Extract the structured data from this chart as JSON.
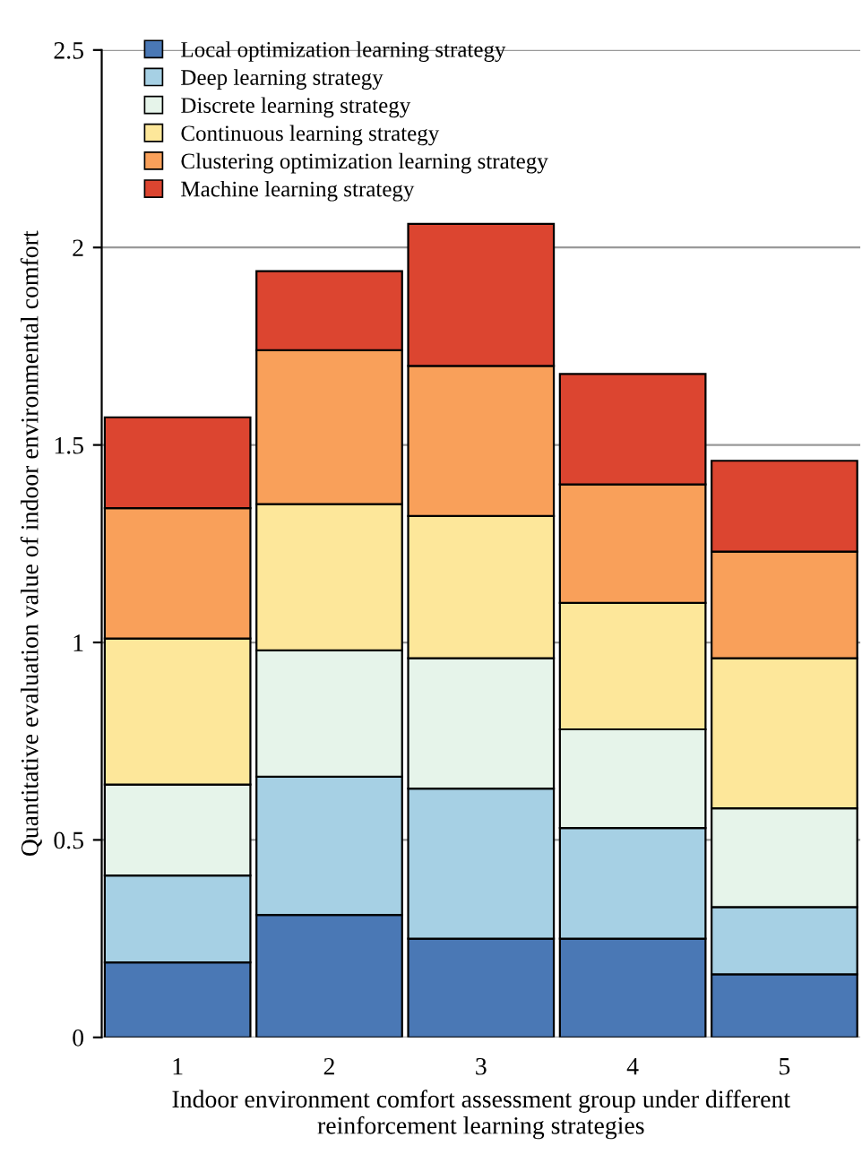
{
  "chart_data": {
    "type": "bar",
    "stacked": true,
    "xlabel": "Indoor environment comfort assessment group under different reinforcement learning strategies",
    "ylabel": "Quantitative evaluation value of indoor environmental comfort",
    "categories": [
      "1",
      "2",
      "3",
      "4",
      "5"
    ],
    "series": [
      {
        "name": "Local optimization learning strategy",
        "color": "#4a78b5",
        "values": [
          0.19,
          0.31,
          0.25,
          0.25,
          0.16
        ]
      },
      {
        "name": "Deep learning strategy",
        "color": "#a6d0e4",
        "values": [
          0.22,
          0.35,
          0.38,
          0.28,
          0.17
        ]
      },
      {
        "name": "Discrete learning strategy",
        "color": "#e6f4ea",
        "values": [
          0.23,
          0.32,
          0.33,
          0.25,
          0.25
        ]
      },
      {
        "name": "Continuous learning strategy",
        "color": "#fde79a",
        "values": [
          0.37,
          0.37,
          0.36,
          0.32,
          0.38
        ]
      },
      {
        "name": "Clustering optimization learning strategy",
        "color": "#f9a05a",
        "values": [
          0.33,
          0.39,
          0.38,
          0.3,
          0.27
        ]
      },
      {
        "name": "Machine learning strategy",
        "color": "#dc4530",
        "values": [
          0.23,
          0.2,
          0.36,
          0.28,
          0.23
        ]
      }
    ],
    "ylim": [
      0,
      2.5
    ],
    "yticks": [
      0,
      {
        "value": 0.5,
        "label": "0.5"
      },
      1,
      {
        "value": 1.5,
        "label": "1.5"
      },
      2,
      {
        "value": 2.5,
        "label": "2.5"
      }
    ],
    "grid": "y",
    "legend": "top left"
  }
}
